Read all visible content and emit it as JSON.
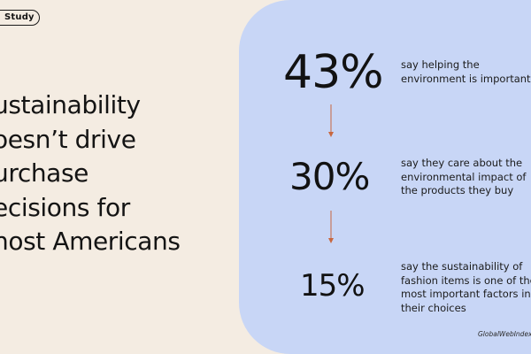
{
  "badge": {
    "label": "Study"
  },
  "headline": {
    "lines": [
      "ustainability",
      "oesn’t drive",
      "urchase",
      "ecisions for",
      "nost Americans"
    ]
  },
  "stats": [
    {
      "value": "43%",
      "lines": [
        "say helping the",
        "environment is important"
      ]
    },
    {
      "value": "30%",
      "lines": [
        "say they care about the",
        "environmental impact of",
        "the products they buy"
      ]
    },
    {
      "value": "15%",
      "lines": [
        "say the sustainability of",
        "fashion items is one of the",
        "most important factors in",
        "their choices"
      ]
    }
  ],
  "source": {
    "label": "GlobalWebIndex, Q"
  },
  "colors": {
    "background": "#f4ece2",
    "panel": "#c8d6f6",
    "arrow": "#c8673f"
  }
}
